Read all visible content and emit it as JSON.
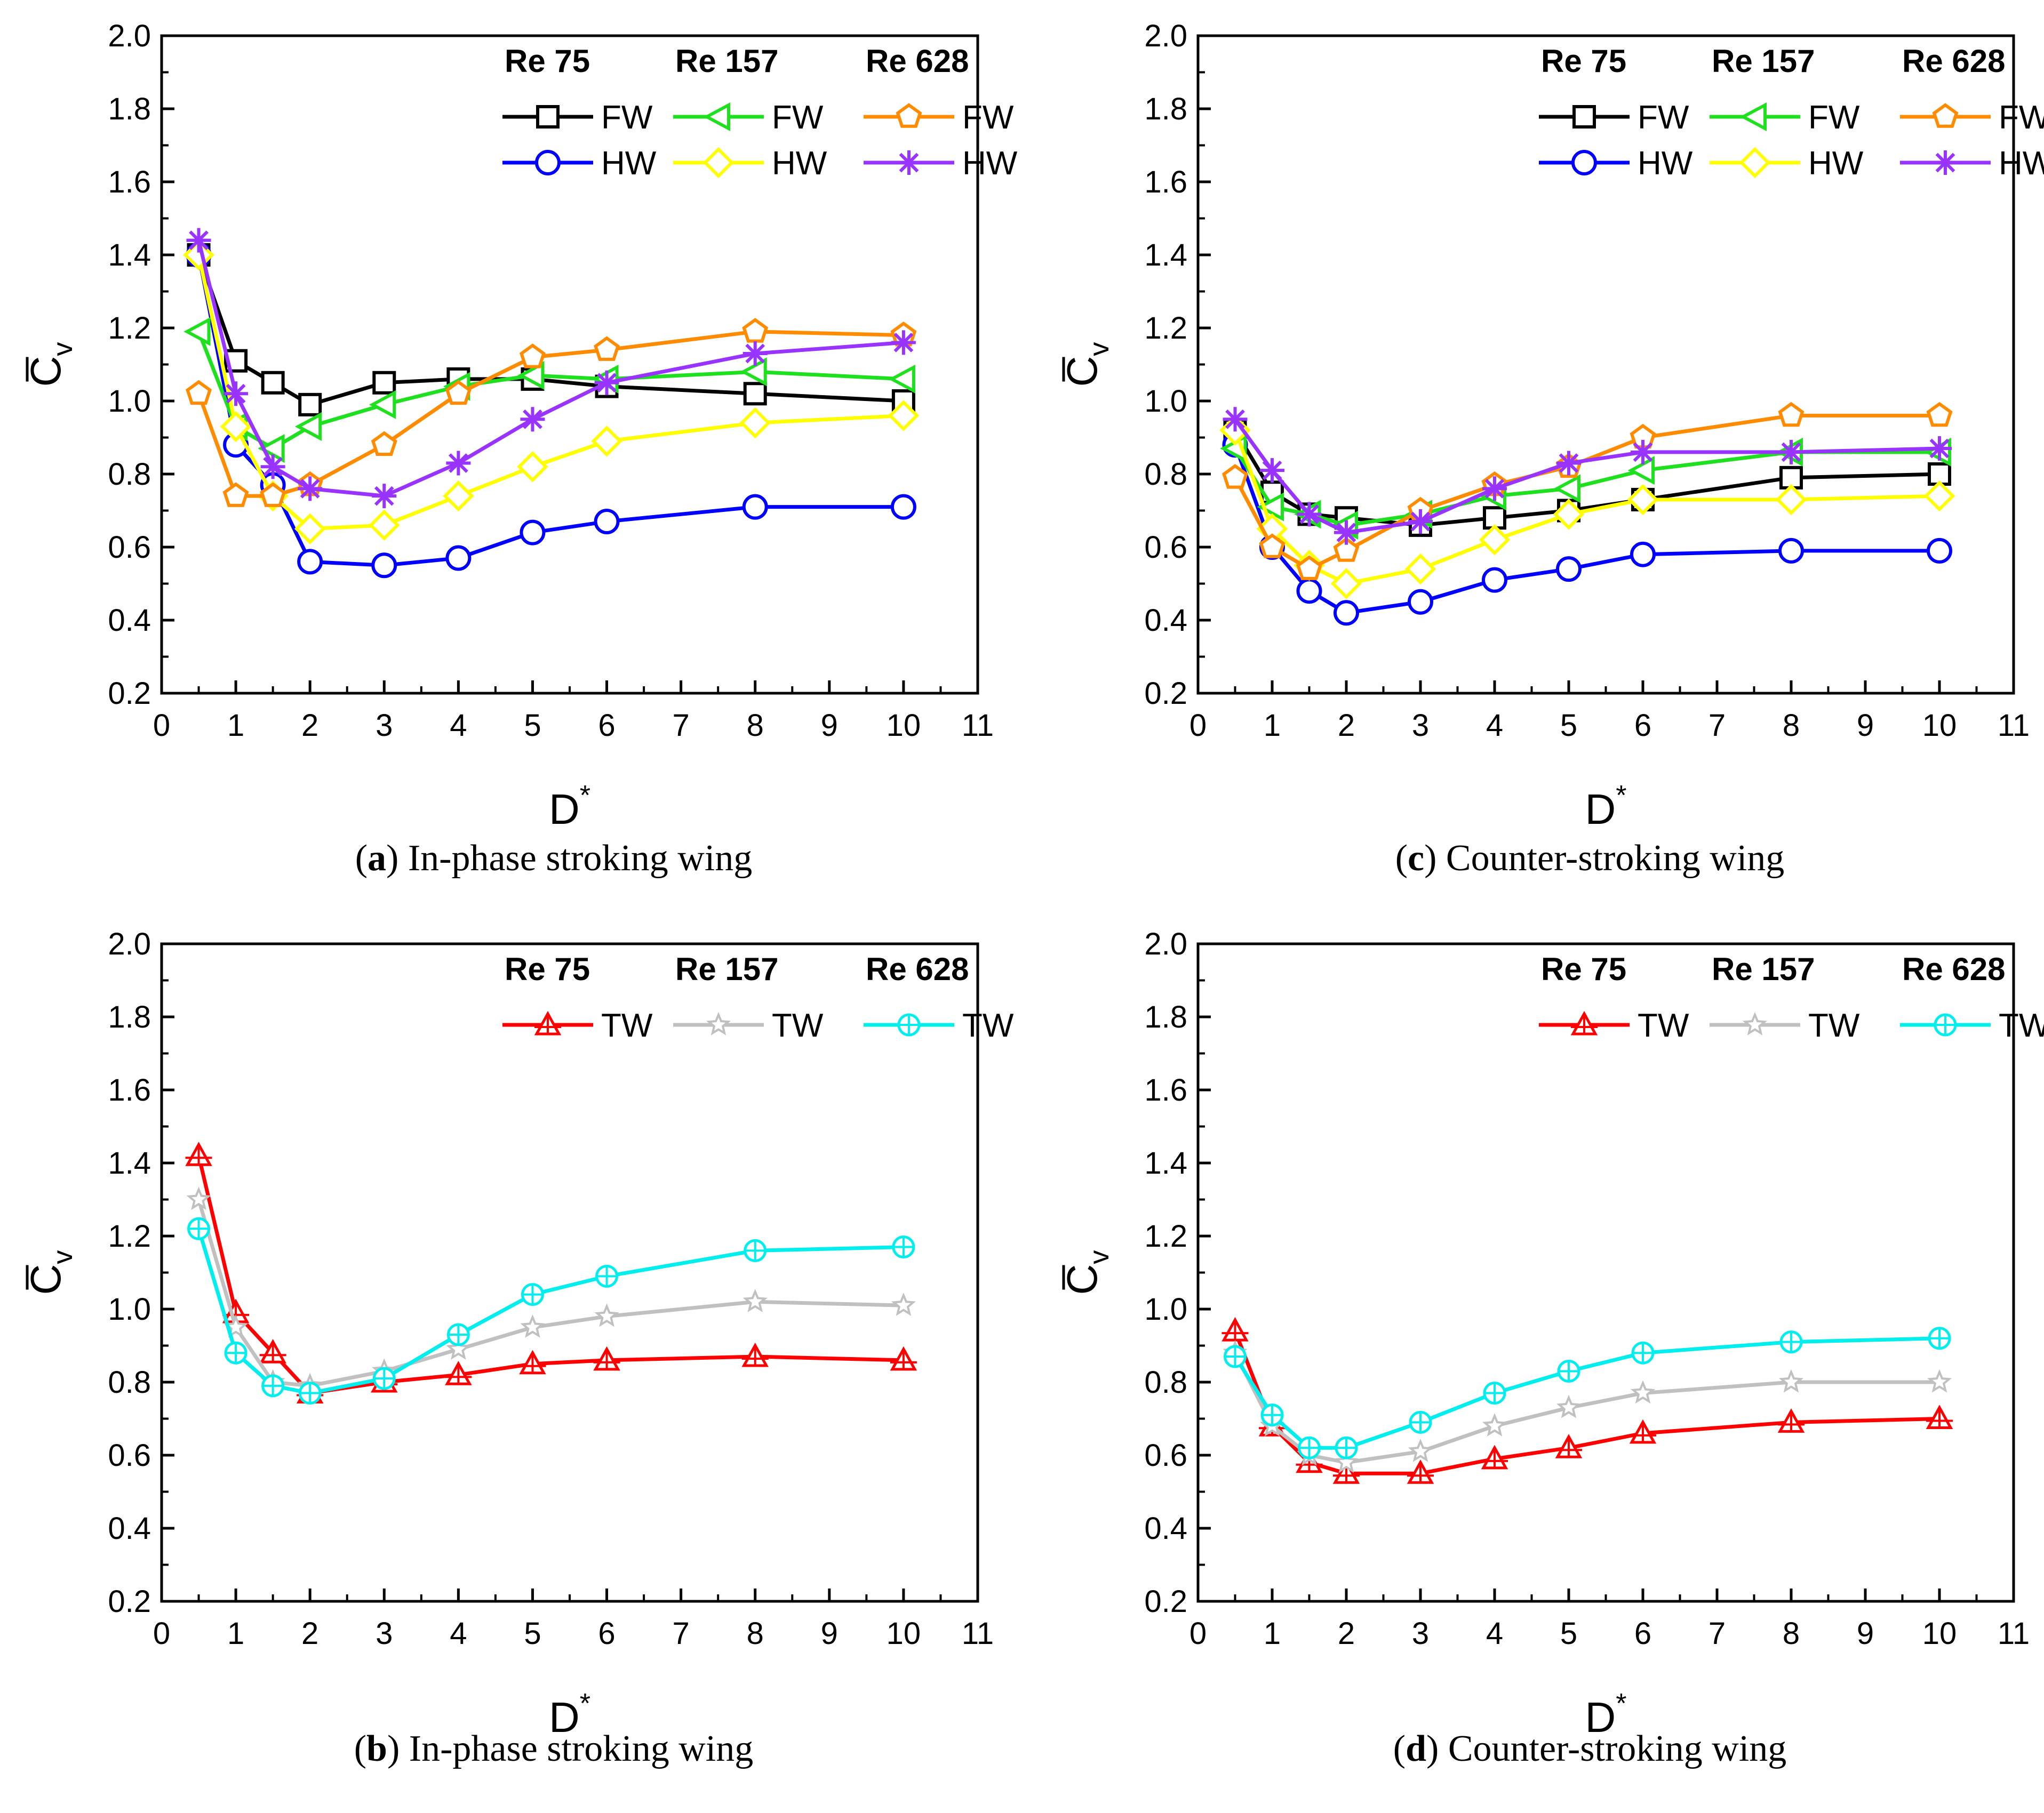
{
  "chart_data": [
    {
      "id": "a",
      "type": "line",
      "caption_letter": "a",
      "caption_text": "In-phase stroking wing",
      "xlabel": "D",
      "xlabel_sup": "*",
      "ylabel": "C",
      "ylabel_sub": "v",
      "xlim": [
        0,
        11
      ],
      "ylim": [
        0.2,
        2.0
      ],
      "xticks": [
        "0",
        "1",
        "2",
        "3",
        "4",
        "5",
        "6",
        "7",
        "8",
        "9",
        "10",
        "11"
      ],
      "yticks": [
        "0.2",
        "0.4",
        "0.6",
        "0.8",
        "1.0",
        "1.2",
        "1.4",
        "1.6",
        "1.8",
        "2.0"
      ],
      "legend_headers": [
        "Re 75",
        "Re 157",
        "Re 628"
      ],
      "series": [
        {
          "name": "FW",
          "group": "Re 75",
          "color": "#000000",
          "marker": "square",
          "x": [
            0.5,
            1,
            1.5,
            2,
            3,
            4,
            5,
            6,
            8,
            10
          ],
          "values": [
            1.4,
            1.11,
            1.05,
            0.99,
            1.05,
            1.06,
            1.06,
            1.04,
            1.02,
            1.0
          ]
        },
        {
          "name": "HW",
          "group": "Re 75",
          "color": "#0000ff",
          "marker": "circle",
          "x": [
            0.5,
            1,
            1.5,
            2,
            3,
            4,
            5,
            6,
            8,
            10
          ],
          "values": [
            1.4,
            0.88,
            0.77,
            0.56,
            0.55,
            0.57,
            0.64,
            0.67,
            0.71,
            0.71
          ]
        },
        {
          "name": "FW",
          "group": "Re 157",
          "color": "#1ee01e",
          "marker": "triangle-left",
          "x": [
            0.5,
            1,
            1.5,
            2,
            3,
            4,
            5,
            6,
            8,
            10
          ],
          "values": [
            1.19,
            0.93,
            0.87,
            0.93,
            0.99,
            1.04,
            1.07,
            1.06,
            1.08,
            1.06
          ]
        },
        {
          "name": "HW",
          "group": "Re 157",
          "color": "#ffff00",
          "marker": "diamond",
          "x": [
            0.5,
            1,
            1.5,
            2,
            3,
            4,
            5,
            6,
            8,
            10
          ],
          "values": [
            1.4,
            0.93,
            0.74,
            0.65,
            0.66,
            0.74,
            0.82,
            0.89,
            0.94,
            0.96
          ]
        },
        {
          "name": "FW",
          "group": "Re 628",
          "color": "#ff8c00",
          "marker": "pentagon",
          "x": [
            0.5,
            1,
            1.5,
            2,
            3,
            4,
            5,
            6,
            8,
            10
          ],
          "values": [
            1.02,
            0.74,
            0.74,
            0.77,
            0.88,
            1.02,
            1.12,
            1.14,
            1.19,
            1.18
          ]
        },
        {
          "name": "HW",
          "group": "Re 628",
          "color": "#9933ff",
          "marker": "asterisk",
          "x": [
            0.5,
            1,
            1.5,
            2,
            3,
            4,
            5,
            6,
            8,
            10
          ],
          "values": [
            1.44,
            1.02,
            0.82,
            0.76,
            0.74,
            0.83,
            0.95,
            1.05,
            1.13,
            1.16
          ]
        }
      ]
    },
    {
      "id": "c",
      "type": "line",
      "caption_letter": "c",
      "caption_text": "Counter-stroking wing",
      "xlabel": "D",
      "xlabel_sup": "*",
      "ylabel": "C",
      "ylabel_sub": "v",
      "xlim": [
        0,
        11
      ],
      "ylim": [
        0.2,
        2.0
      ],
      "xticks": [
        "0",
        "1",
        "2",
        "3",
        "4",
        "5",
        "6",
        "7",
        "8",
        "9",
        "10",
        "11"
      ],
      "yticks": [
        "0.2",
        "0.4",
        "0.6",
        "0.8",
        "1.0",
        "1.2",
        "1.4",
        "1.6",
        "1.8",
        "2.0"
      ],
      "legend_headers": [
        "Re 75",
        "Re 157",
        "Re 628"
      ],
      "series": [
        {
          "name": "FW",
          "group": "Re 75",
          "color": "#000000",
          "marker": "square",
          "x": [
            0.5,
            1,
            1.5,
            2,
            3,
            4,
            5,
            6,
            8,
            10
          ],
          "values": [
            0.92,
            0.75,
            0.69,
            0.68,
            0.66,
            0.68,
            0.7,
            0.73,
            0.79,
            0.8
          ]
        },
        {
          "name": "HW",
          "group": "Re 75",
          "color": "#0000ff",
          "marker": "circle",
          "x": [
            0.5,
            1,
            1.5,
            2,
            3,
            4,
            5,
            6,
            8,
            10
          ],
          "values": [
            0.88,
            0.6,
            0.48,
            0.42,
            0.45,
            0.51,
            0.54,
            0.58,
            0.59,
            0.59
          ]
        },
        {
          "name": "FW",
          "group": "Re 157",
          "color": "#1ee01e",
          "marker": "triangle-left",
          "x": [
            0.5,
            1,
            1.5,
            2,
            3,
            4,
            5,
            6,
            8,
            10
          ],
          "values": [
            0.87,
            0.71,
            0.69,
            0.66,
            0.69,
            0.74,
            0.76,
            0.81,
            0.86,
            0.86
          ]
        },
        {
          "name": "HW",
          "group": "Re 157",
          "color": "#ffff00",
          "marker": "diamond",
          "x": [
            0.5,
            1,
            1.5,
            2,
            3,
            4,
            5,
            6,
            8,
            10
          ],
          "values": [
            0.92,
            0.65,
            0.55,
            0.5,
            0.54,
            0.62,
            0.69,
            0.73,
            0.73,
            0.74
          ]
        },
        {
          "name": "FW",
          "group": "Re 628",
          "color": "#ff8c00",
          "marker": "pentagon",
          "x": [
            0.5,
            1,
            1.5,
            2,
            3,
            4,
            5,
            6,
            8,
            10
          ],
          "values": [
            0.79,
            0.6,
            0.54,
            0.59,
            0.7,
            0.77,
            0.82,
            0.9,
            0.96,
            0.96
          ]
        },
        {
          "name": "HW",
          "group": "Re 628",
          "color": "#9933ff",
          "marker": "asterisk",
          "x": [
            0.5,
            1,
            1.5,
            2,
            3,
            4,
            5,
            6,
            8,
            10
          ],
          "values": [
            0.95,
            0.81,
            0.69,
            0.64,
            0.67,
            0.76,
            0.83,
            0.86,
            0.86,
            0.87
          ]
        }
      ]
    },
    {
      "id": "b",
      "type": "line",
      "caption_letter": "b",
      "caption_text": "In-phase stroking wing",
      "xlabel": "D",
      "xlabel_sup": "*",
      "ylabel": "C",
      "ylabel_sub": "v",
      "xlim": [
        0,
        11
      ],
      "ylim": [
        0.2,
        2.0
      ],
      "xticks": [
        "0",
        "1",
        "2",
        "3",
        "4",
        "5",
        "6",
        "7",
        "8",
        "9",
        "10",
        "11"
      ],
      "yticks": [
        "0.2",
        "0.4",
        "0.6",
        "0.8",
        "1.0",
        "1.2",
        "1.4",
        "1.6",
        "1.8",
        "2.0"
      ],
      "legend_headers": [
        "Re 75",
        "Re 157",
        "Re 628"
      ],
      "series": [
        {
          "name": "TW",
          "group": "Re 75",
          "color": "#ff0000",
          "marker": "triangle-cross",
          "x": [
            0.5,
            1,
            1.5,
            2,
            3,
            4,
            5,
            6,
            8,
            10
          ],
          "values": [
            1.42,
            0.99,
            0.88,
            0.77,
            0.8,
            0.82,
            0.85,
            0.86,
            0.87,
            0.86
          ]
        },
        {
          "name": "TW",
          "group": "Re 157",
          "color": "#c0c0c0",
          "marker": "star",
          "x": [
            0.5,
            1,
            1.5,
            2,
            3,
            4,
            5,
            6,
            8,
            10
          ],
          "values": [
            1.3,
            0.95,
            0.8,
            0.79,
            0.83,
            0.89,
            0.95,
            0.98,
            1.02,
            1.01
          ]
        },
        {
          "name": "TW",
          "group": "Re 628",
          "color": "#00eeee",
          "marker": "circle-cross",
          "x": [
            0.5,
            1,
            1.5,
            2,
            3,
            4,
            5,
            6,
            8,
            10
          ],
          "values": [
            1.22,
            0.88,
            0.79,
            0.77,
            0.81,
            0.93,
            1.04,
            1.09,
            1.16,
            1.17
          ]
        }
      ]
    },
    {
      "id": "d",
      "type": "line",
      "caption_letter": "d",
      "caption_text": "Counter-stroking wing",
      "xlabel": "D",
      "xlabel_sup": "*",
      "ylabel": "C",
      "ylabel_sub": "v",
      "xlim": [
        0,
        11
      ],
      "ylim": [
        0.2,
        2.0
      ],
      "xticks": [
        "0",
        "1",
        "2",
        "3",
        "4",
        "5",
        "6",
        "7",
        "8",
        "9",
        "10",
        "11"
      ],
      "yticks": [
        "0.2",
        "0.4",
        "0.6",
        "0.8",
        "1.0",
        "1.2",
        "1.4",
        "1.6",
        "1.8",
        "2.0"
      ],
      "legend_headers": [
        "Re 75",
        "Re 157",
        "Re 628"
      ],
      "series": [
        {
          "name": "TW",
          "group": "Re 75",
          "color": "#ff0000",
          "marker": "triangle-cross",
          "x": [
            0.5,
            1,
            1.5,
            2,
            3,
            4,
            5,
            6,
            8,
            10
          ],
          "values": [
            0.94,
            0.68,
            0.58,
            0.55,
            0.55,
            0.59,
            0.62,
            0.66,
            0.69,
            0.7
          ]
        },
        {
          "name": "TW",
          "group": "Re 157",
          "color": "#c0c0c0",
          "marker": "star",
          "x": [
            0.5,
            1,
            1.5,
            2,
            3,
            4,
            5,
            6,
            8,
            10
          ],
          "values": [
            0.88,
            0.68,
            0.6,
            0.58,
            0.61,
            0.68,
            0.73,
            0.77,
            0.8,
            0.8
          ]
        },
        {
          "name": "TW",
          "group": "Re 628",
          "color": "#00eeee",
          "marker": "circle-cross",
          "x": [
            0.5,
            1,
            1.5,
            2,
            3,
            4,
            5,
            6,
            8,
            10
          ],
          "values": [
            0.87,
            0.71,
            0.62,
            0.62,
            0.69,
            0.77,
            0.83,
            0.88,
            0.91,
            0.92
          ]
        }
      ]
    }
  ]
}
